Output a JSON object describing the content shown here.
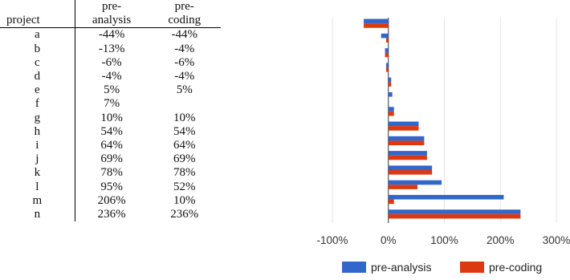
{
  "table": {
    "header": {
      "project": "project",
      "col1_line1": "pre-",
      "col1_line2": "analysis",
      "col2_line1": "pre-",
      "col2_line2": "coding"
    },
    "rows": [
      {
        "project": "a",
        "pre_analysis": "-44%",
        "pre_coding": "-44%"
      },
      {
        "project": "b",
        "pre_analysis": "-13%",
        "pre_coding": "-4%"
      },
      {
        "project": "c",
        "pre_analysis": "-6%",
        "pre_coding": "-6%"
      },
      {
        "project": "d",
        "pre_analysis": "-4%",
        "pre_coding": "-4%"
      },
      {
        "project": "e",
        "pre_analysis": "5%",
        "pre_coding": "5%"
      },
      {
        "project": "f",
        "pre_analysis": "7%",
        "pre_coding": ""
      },
      {
        "project": "g",
        "pre_analysis": "10%",
        "pre_coding": "10%"
      },
      {
        "project": "h",
        "pre_analysis": "54%",
        "pre_coding": "54%"
      },
      {
        "project": "i",
        "pre_analysis": "64%",
        "pre_coding": "64%"
      },
      {
        "project": "j",
        "pre_analysis": "69%",
        "pre_coding": "69%"
      },
      {
        "project": "k",
        "pre_analysis": "78%",
        "pre_coding": "78%"
      },
      {
        "project": "l",
        "pre_analysis": "95%",
        "pre_coding": "52%"
      },
      {
        "project": "m",
        "pre_analysis": "206%",
        "pre_coding": "10%"
      },
      {
        "project": "n",
        "pre_analysis": "236%",
        "pre_coding": "236%"
      }
    ]
  },
  "chart_data": {
    "type": "bar",
    "orientation": "horizontal",
    "categories": [
      "a",
      "b",
      "c",
      "d",
      "e",
      "f",
      "g",
      "h",
      "i",
      "j",
      "k",
      "l",
      "m",
      "n"
    ],
    "series": [
      {
        "name": "pre-analysis",
        "color": "#3366cc",
        "values": [
          -44,
          -13,
          -6,
          -4,
          5,
          7,
          10,
          54,
          64,
          69,
          78,
          95,
          206,
          236
        ]
      },
      {
        "name": "pre-coding",
        "color": "#dc3912",
        "values": [
          -44,
          -4,
          -6,
          -4,
          5,
          null,
          10,
          54,
          64,
          69,
          78,
          52,
          10,
          236
        ]
      }
    ],
    "xlim": [
      -100,
      300
    ],
    "xticks": [
      "-100%",
      "0%",
      "100%",
      "200%",
      "300%"
    ],
    "xtick_values": [
      -100,
      0,
      100,
      200,
      300
    ],
    "grid": true,
    "category_labels_shown": false,
    "legend_position": "bottom"
  }
}
